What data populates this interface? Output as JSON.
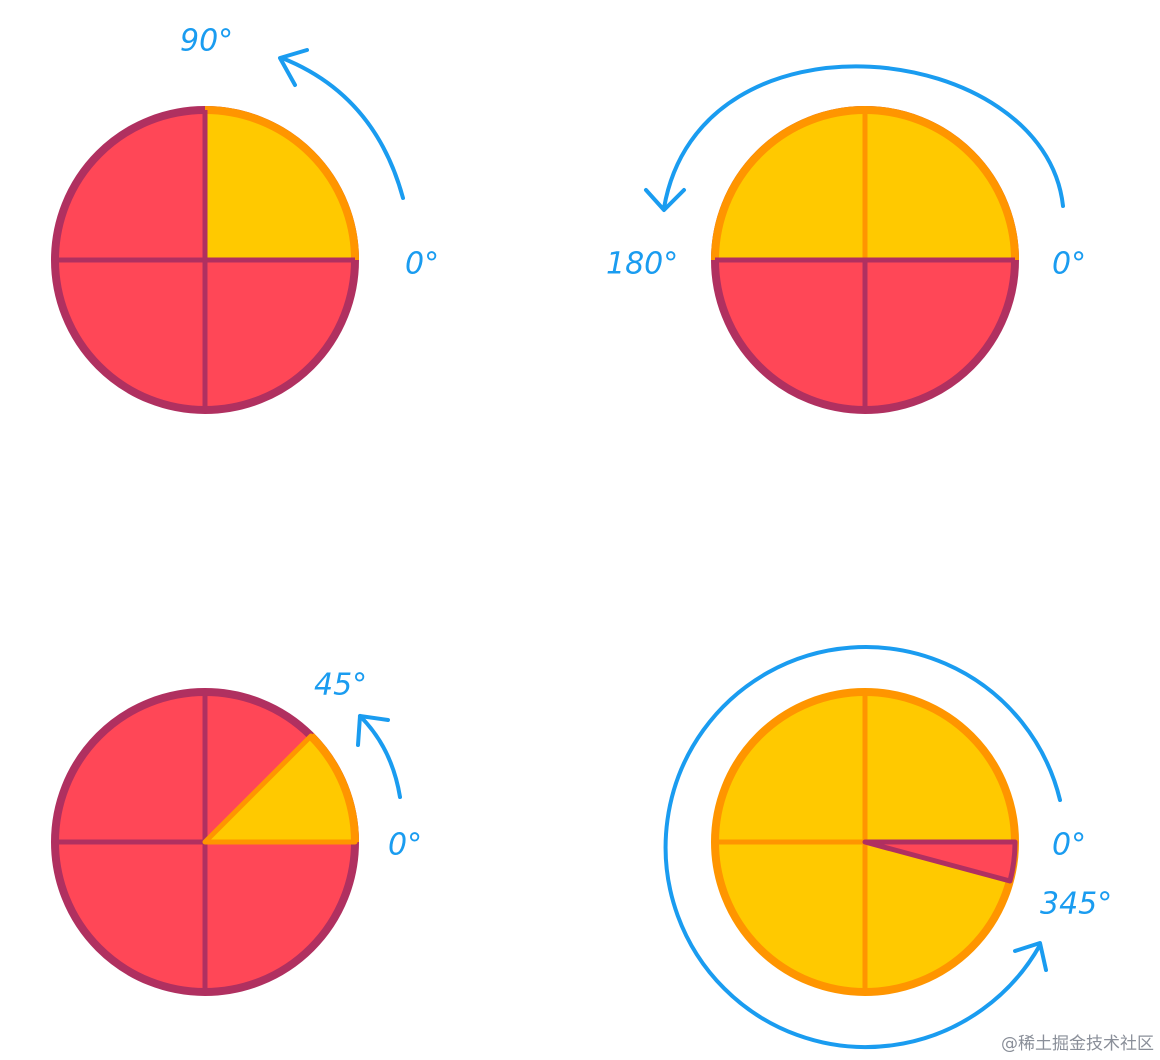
{
  "diagrams": [
    {
      "labels": [
        "90°",
        "0°"
      ]
    },
    {
      "labels": [
        "180°",
        "0°"
      ]
    },
    {
      "labels": [
        "45°",
        "0°"
      ]
    },
    {
      "labels": [
        "0°",
        "345°"
      ]
    }
  ],
  "watermark": "@稀土掘金技术社区"
}
